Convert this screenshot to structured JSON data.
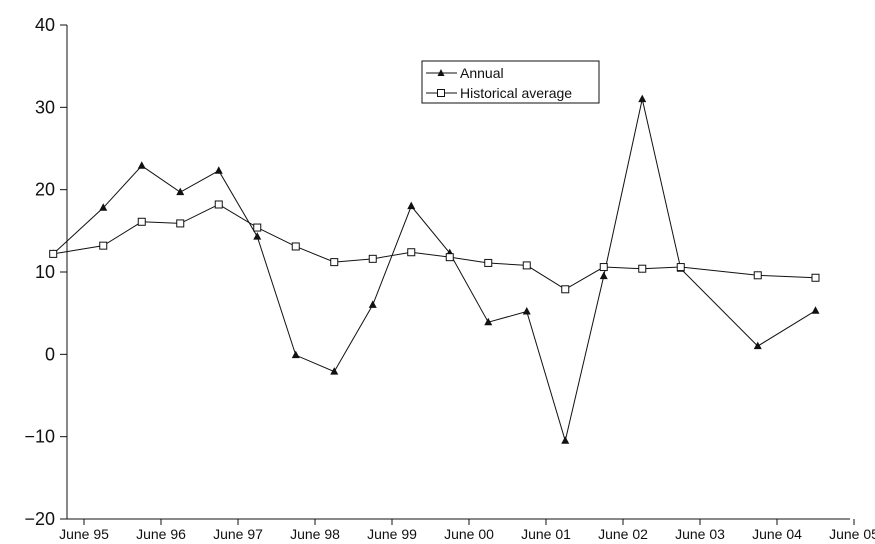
{
  "chart_data": {
    "type": "line",
    "xticks": [
      "June 95",
      "June 96",
      "June 97",
      "June 98",
      "June 99",
      "June 00",
      "June 01",
      "June 02",
      "June 03",
      "June 04",
      "June 05"
    ],
    "yticks": [
      "40",
      "30",
      "20",
      "10",
      "0",
      "−10",
      "−20"
    ],
    "ylim": [
      -20,
      40
    ],
    "xlim": [
      1994.65,
      2005.0
    ],
    "grid": false,
    "legend_position": "top-center",
    "series": [
      {
        "name": "Annual",
        "marker": "filled-triangle",
        "x": [
          1994.6,
          1995.25,
          1995.75,
          1996.25,
          1996.75,
          1997.25,
          1997.75,
          1998.25,
          1998.75,
          1999.25,
          1999.75,
          2000.25,
          2000.75,
          2001.25,
          2001.75,
          2002.25,
          2002.75,
          2003.75,
          2004.5
        ],
        "y": [
          12.2,
          17.8,
          22.9,
          19.7,
          22.3,
          14.3,
          -0.1,
          -2.1,
          6.0,
          18.0,
          12.3,
          3.9,
          5.2,
          -10.5,
          9.5,
          31.0,
          10.4,
          1.0,
          5.3
        ]
      },
      {
        "name": "Historical average",
        "marker": "open-square",
        "x": [
          1994.6,
          1995.25,
          1995.75,
          1996.25,
          1996.75,
          1997.25,
          1997.75,
          1998.25,
          1998.75,
          1999.25,
          1999.75,
          2000.25,
          2000.75,
          2001.25,
          2001.75,
          2002.25,
          2002.75,
          2003.75,
          2004.5
        ],
        "y": [
          12.2,
          13.2,
          16.1,
          15.9,
          18.2,
          15.4,
          13.1,
          11.2,
          11.6,
          12.4,
          11.8,
          11.1,
          10.8,
          7.9,
          10.6,
          10.4,
          10.6,
          9.6,
          9.3
        ]
      }
    ]
  }
}
